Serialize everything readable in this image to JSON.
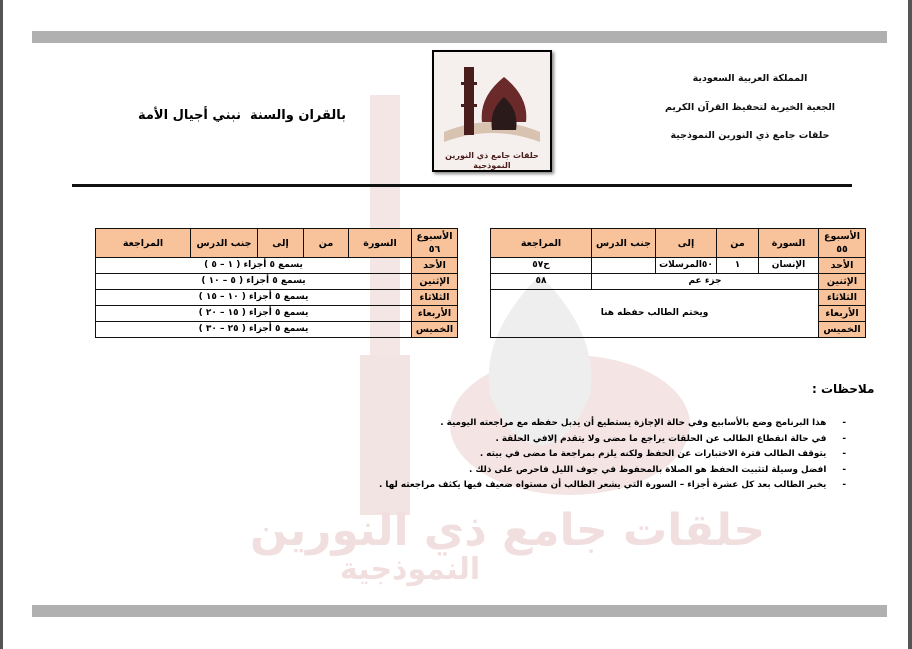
{
  "header": {
    "country": "المملكة العربية السعودية",
    "society": "الجعية الخيرية لتحفيظ القرآن الكريم",
    "circles": "حلقات جامع ذي النورين النموذجية",
    "slogan_1": "بالقران والسنة",
    "slogan_2": "نبني أجيال الأمة",
    "logo_text": "حلقات جامع ذي النورين النموذجية"
  },
  "columns": [
    "السورة",
    "من",
    "إلى",
    "جنب الدرس",
    "المراجعة"
  ],
  "week_label": "الأسبوع",
  "table_right": {
    "week": "٥٥",
    "rows": [
      {
        "day": "الأحد",
        "surah": "الإنسان",
        "from": "١",
        "to": "٥٠المرسلات",
        "lesson": "",
        "review": "ح٥٧"
      },
      {
        "day": "الإثنين",
        "merged": "جزء عم",
        "review": "٥٨"
      },
      {
        "day": "الثلاثاء"
      },
      {
        "day": "الأربعاء"
      },
      {
        "day": "الخميس"
      }
    ],
    "merged_note": "ويختم الطالب حفظه هنا"
  },
  "table_left": {
    "week": "٥٦",
    "rows": [
      {
        "day": "الأحد",
        "text": "يسمع ٥ أجزاء ( ١ – ٥ )"
      },
      {
        "day": "الإثنين",
        "text": "يسمع ٥ أجزاء ( ٥ – ١٠ )"
      },
      {
        "day": "الثلاثاء",
        "text": "يسمع ٥ أجزاء ( ١٠ – ١٥ )"
      },
      {
        "day": "الأربعاء",
        "text": "يسمع ٥ أجزاء ( ١٥ – ٢٠ )"
      },
      {
        "day": "الخميس",
        "text": "يسمع ٥ أجزاء ( ٢٥ – ٣٠ )"
      }
    ]
  },
  "notes": {
    "title": "ملاحظات :",
    "items": [
      "هذا البرنامج وضع بالأسابيع وفي حالة الإجازة يستطيع أن يدبل حفظه مع مراجعته اليومية .",
      "في حالة انقطاع الطالب عن الحلقات يراجع ما مضى ولا يتقدم إلافي الحلقة .",
      "يتوقف الطالب فترة الاختبارات عن الحفظ ولكنه يلزم بمراجعة ما مضى في بيته .",
      "افضل وسيلة لتثبيت الحفظ هو الصلاة بالمحفوظ في جوف الليل فاحرص على ذلك .",
      "يخبر الطالب بعد كل عشرة أجزاء – السورة التي يشعر الطالب أن مستواه ضعيف فيها يكثف مراجعته لها ."
    ]
  },
  "watermark": {
    "line1": "حلقات جامع ذي النورين",
    "line2": "النموذجية"
  },
  "colors": {
    "header_fill": "#f8c39b",
    "frame": "#b0b0b0",
    "watermark": "#f1dede"
  }
}
